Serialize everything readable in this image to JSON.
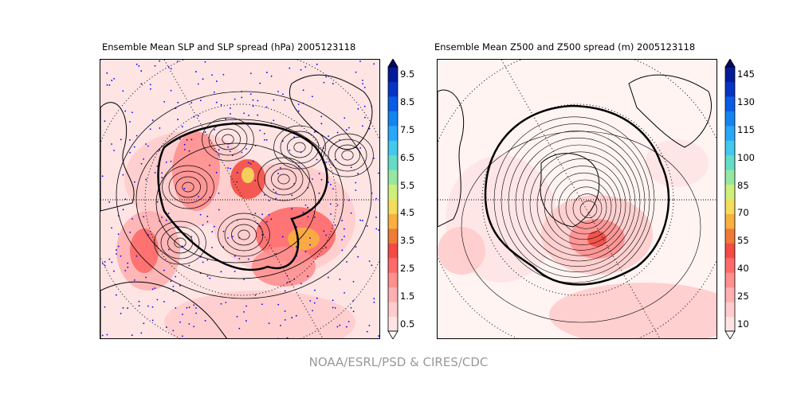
{
  "footer": "NOAA/ESRL/PSD & CIRES/CDC",
  "chart_data": [
    {
      "type": "heatmap",
      "title": "Ensemble Mean SLP and SLP spread (hPa) 2005123118",
      "projection": "polar stereographic (Southern Hemisphere)",
      "colorbar": {
        "ticks": [
          "0.5",
          "1.5",
          "2.5",
          "3.5",
          "4.5",
          "5.5",
          "6.5",
          "7.5",
          "8.5",
          "9.5"
        ],
        "range": [
          0.5,
          9.5
        ],
        "step": 0.5,
        "extend": "both"
      }
    },
    {
      "type": "heatmap",
      "title": "Ensemble Mean Z500 and Z500 spread (m) 2005123118",
      "projection": "polar stereographic (Southern Hemisphere)",
      "colorbar": {
        "ticks": [
          "10",
          "25",
          "40",
          "55",
          "70",
          "85",
          "100",
          "115",
          "130",
          "145"
        ],
        "range": [
          10,
          145
        ],
        "step": 7.5,
        "extend": "both"
      }
    }
  ],
  "colors": [
    "#ffe4e4",
    "#ffcccc",
    "#ffb0b0",
    "#ff9090",
    "#ff6a6a",
    "#f24c44",
    "#f07a38",
    "#f8b040",
    "#f4dc5c",
    "#cef07a",
    "#96e8a0",
    "#64dcc8",
    "#44c8ec",
    "#28a8f8",
    "#1484f0",
    "#0a5ce4",
    "#0634c4",
    "#021c98"
  ],
  "extend_colors": {
    "over": "#000a6a",
    "under": "#ffffff"
  }
}
